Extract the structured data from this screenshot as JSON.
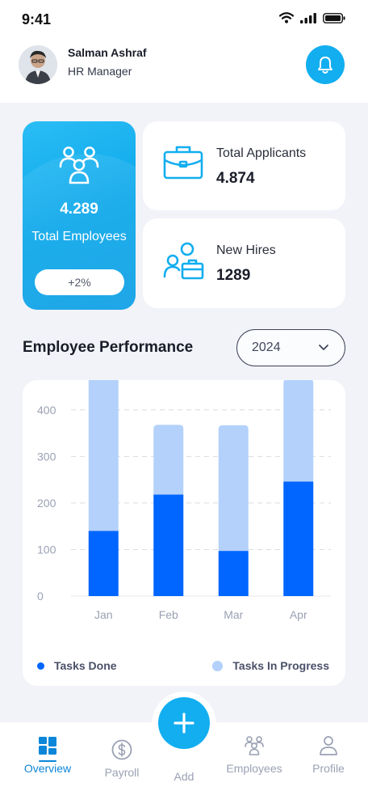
{
  "status_bar": {
    "time": "9:41"
  },
  "user": {
    "name": "Salman Ashraf",
    "role": "HR Manager"
  },
  "stats": {
    "total_employees": {
      "value": "4.289",
      "label": "Total Employees",
      "change": "+2%"
    },
    "total_applicants": {
      "label": "Total Applicants",
      "value": "4.874"
    },
    "new_hires": {
      "label": "New Hires",
      "value": "1289"
    }
  },
  "performance": {
    "title": "Employee Performance",
    "year": "2024"
  },
  "chart_data": {
    "type": "bar",
    "stacked": true,
    "categories": [
      "Jan",
      "Feb",
      "Mar",
      "Apr"
    ],
    "series": [
      {
        "name": "Tasks Done",
        "values": [
          140,
          218,
          97,
          246
        ],
        "color": "#0066ff"
      },
      {
        "name": "Tasks In Progress",
        "values": [
          340,
          150,
          270,
          220
        ],
        "color": "#b3d1fb"
      }
    ],
    "y_ticks": [
      "0",
      "100",
      "200",
      "300",
      "400"
    ],
    "ylim": [
      0,
      450
    ],
    "grid": true,
    "legend": "bottom"
  },
  "nav": {
    "items": [
      {
        "label": "Overview",
        "icon": "grid-icon",
        "active": true
      },
      {
        "label": "Payroll",
        "icon": "dollar-icon",
        "active": false
      },
      {
        "label": "Add",
        "icon": "plus-icon",
        "active": false
      },
      {
        "label": "Employees",
        "icon": "users-icon",
        "active": false
      },
      {
        "label": "Profile",
        "icon": "user-icon",
        "active": false
      }
    ]
  },
  "colors": {
    "accent": "#12aef0",
    "done": "#0066ff",
    "progress": "#b3d1fb"
  }
}
